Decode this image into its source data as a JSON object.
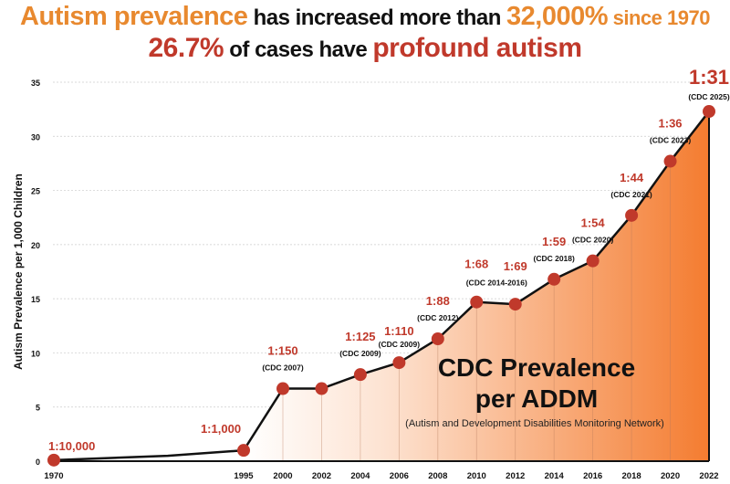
{
  "title": {
    "line1": {
      "a": "Autism prevalence",
      "b": " has increased more than ",
      "c": "32,000%",
      "d": " since 1970"
    },
    "line2": {
      "a": "26.7%",
      "b": " of cases have ",
      "c": "profound autism"
    }
  },
  "chart_data": {
    "type": "area",
    "ylabel": "Autism Prevalence per 1,000 Children",
    "xlabel": "",
    "ylim": [
      0,
      35
    ],
    "yticks": [
      "0",
      "5",
      "10",
      "15",
      "20",
      "25",
      "30",
      "35"
    ],
    "x": [
      1970,
      1995,
      2000,
      2002,
      2004,
      2006,
      2008,
      2010,
      2012,
      2014,
      2016,
      2018,
      2020,
      2022
    ],
    "xticks": [
      "1970",
      "1995",
      "2000",
      "2002",
      "2004",
      "2006",
      "2008",
      "2010",
      "2012",
      "2014",
      "2016",
      "2018",
      "2020",
      "2022"
    ],
    "values": [
      0.1,
      1.0,
      6.7,
      6.7,
      8.0,
      9.1,
      11.3,
      14.7,
      14.5,
      16.8,
      18.5,
      22.7,
      27.7,
      32.3
    ],
    "labels": [
      {
        "ratio": "1:10,000",
        "source": ""
      },
      {
        "ratio": "1:1,000",
        "source": ""
      },
      {
        "ratio": "1:150",
        "source": "(CDC 2007)"
      },
      {
        "ratio": "",
        "source": ""
      },
      {
        "ratio": "1:125",
        "source": "(CDC 2009)"
      },
      {
        "ratio": "1:110",
        "source": "(CDC 2009)"
      },
      {
        "ratio": "1:88",
        "source": "(CDC 2012)"
      },
      {
        "ratio": "1:68",
        "source": "(CDC 2014-2016)"
      },
      {
        "ratio": "1:69",
        "source": ""
      },
      {
        "ratio": "1:59",
        "source": "(CDC 2018)"
      },
      {
        "ratio": "1:54",
        "source": "(CDC 2020)"
      },
      {
        "ratio": "1:44",
        "source": "(CDC 2021)"
      },
      {
        "ratio": "1:36",
        "source": "(CDC 2023)"
      },
      {
        "ratio": "1:31",
        "source": "(CDC 2025)"
      }
    ],
    "annotation": {
      "title1": "CDC Prevalence",
      "title2": "per ADDM",
      "subtitle": "(Autism and Development Disabilities Monitoring Network)"
    },
    "colors": {
      "point": "#c0392b",
      "label": "#c0392b",
      "fill_start": "#fde3d2",
      "fill_end": "#f47c30"
    },
    "grid": true
  }
}
